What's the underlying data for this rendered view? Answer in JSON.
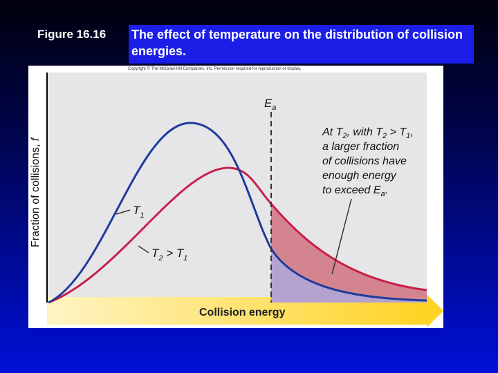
{
  "header": {
    "figure_number": "Figure 16.16",
    "title": "The effect of temperature on the distribution of collision energies."
  },
  "copyright": "Copyright © The McGraw-Hill Companies, Inc. Permission required for reproduction or display.",
  "figure": {
    "y_axis_label": [
      "Fraction of collisions, ",
      "f"
    ],
    "x_axis_label": "Collision energy",
    "threshold_label": [
      "E",
      "a"
    ],
    "curve_labels": [
      [
        "T",
        "1"
      ],
      [
        "T",
        "2",
        " > T",
        "1"
      ]
    ],
    "annotation": [
      [
        "At T",
        "2",
        ", with T",
        "2",
        " > T",
        "1",
        ","
      ],
      [
        "a larger fraction"
      ],
      [
        "of collisions have"
      ],
      [
        "enough energy"
      ],
      [
        "to exceed E",
        "a",
        "."
      ]
    ]
  }
}
